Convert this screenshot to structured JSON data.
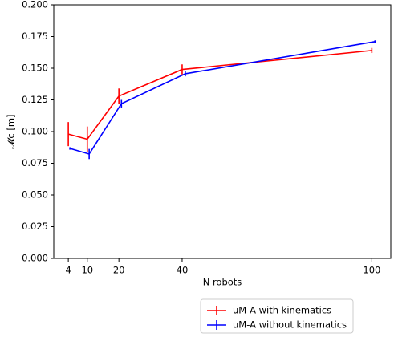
{
  "chart_data": {
    "type": "line",
    "xlabel": "N robots",
    "ylabel": "𝓜c  [m]",
    "xlim": [
      -0.6,
      106
    ],
    "ylim": [
      0,
      0.2
    ],
    "xticks": [
      4,
      10,
      20,
      40,
      100
    ],
    "yticks": [
      {
        "value": 0,
        "label": "0.000"
      },
      {
        "value": 0.025,
        "label": "0.025"
      },
      {
        "value": 0.05,
        "label": "0.050"
      },
      {
        "value": 0.075,
        "label": "0.075"
      },
      {
        "value": 0.1,
        "label": "0.100"
      },
      {
        "value": 0.125,
        "label": "0.125"
      },
      {
        "value": 0.15,
        "label": "0.150"
      },
      {
        "value": 0.175,
        "label": "0.175"
      },
      {
        "value": 0.2,
        "label": "0.200"
      }
    ],
    "legend": "bottom-right",
    "series": [
      {
        "name": "uM-A with kinematics",
        "color": "#ff0000",
        "x": [
          4,
          10,
          20,
          40,
          100
        ],
        "values": [
          0.098,
          0.094,
          0.128,
          0.149,
          0.164
        ],
        "errors": [
          0.0095,
          0.01,
          0.006,
          0.004,
          0.002
        ]
      },
      {
        "name": "uM-A without kinematics",
        "color": "#0000ff",
        "x": [
          4.5,
          10.6,
          20.8,
          41,
          101
        ],
        "values": [
          0.0867,
          0.0823,
          0.122,
          0.1456,
          0.171
        ],
        "errors": [
          0.001,
          0.004,
          0.003,
          0.002,
          0.001
        ]
      }
    ]
  }
}
